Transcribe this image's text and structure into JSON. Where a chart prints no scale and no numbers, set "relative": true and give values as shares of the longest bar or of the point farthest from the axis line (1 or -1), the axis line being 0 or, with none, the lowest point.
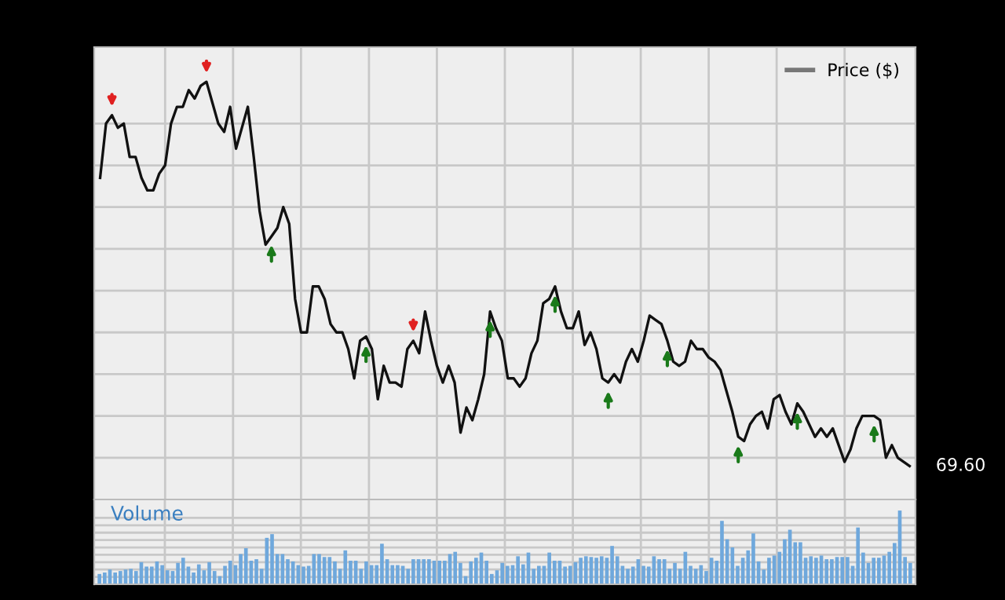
{
  "chart_data": [
    {
      "type": "line",
      "relative": true,
      "legend": "top right",
      "grid": true,
      "marker": "none",
      "line_style": "solid",
      "categories": [
        null,
        null,
        null,
        null,
        null,
        null,
        null,
        null,
        null,
        null,
        null,
        null,
        null,
        null,
        null,
        null,
        null,
        null,
        null,
        null,
        null,
        null,
        null,
        null,
        null,
        null,
        null,
        null,
        null,
        null,
        null,
        null,
        null,
        null,
        null,
        null,
        null,
        null,
        null,
        null,
        null,
        null,
        null,
        null,
        null,
        null,
        null,
        null,
        null,
        null,
        null,
        null,
        null,
        null,
        null,
        null,
        null,
        null,
        null,
        null,
        null,
        null,
        null,
        null,
        null,
        null,
        null,
        null,
        null,
        null,
        null,
        null,
        null,
        null,
        null,
        null,
        null,
        null,
        null,
        null,
        null,
        null,
        null,
        null,
        null,
        null,
        null,
        null,
        null,
        null,
        null,
        null,
        null,
        null,
        null,
        null,
        null,
        null,
        null,
        null,
        null,
        null,
        null,
        null,
        null,
        null,
        null,
        null,
        null,
        null,
        null,
        null,
        null,
        null,
        null,
        null,
        null,
        null,
        null,
        null,
        null,
        null,
        null,
        null,
        null,
        null,
        null,
        null,
        null,
        null,
        null,
        null,
        null,
        null,
        null,
        null,
        null,
        null
      ],
      "series": [
        {
          "name": "Price ($)",
          "color": "#111111",
          "values": [
            0.77,
            0.9,
            0.92,
            0.89,
            0.9,
            0.82,
            0.82,
            0.77,
            0.74,
            0.74,
            0.78,
            0.8,
            0.9,
            0.94,
            0.94,
            0.98,
            0.96,
            0.99,
            1.0,
            0.95,
            0.9,
            0.88,
            0.94,
            0.84,
            0.89,
            0.94,
            0.82,
            0.69,
            0.61,
            0.63,
            0.65,
            0.7,
            0.66,
            0.48,
            0.4,
            0.4,
            0.51,
            0.51,
            0.48,
            0.42,
            0.4,
            0.4,
            0.36,
            0.29,
            0.38,
            0.39,
            0.36,
            0.24,
            0.32,
            0.28,
            0.28,
            0.27,
            0.36,
            0.38,
            0.35,
            0.45,
            0.38,
            0.32,
            0.28,
            0.32,
            0.28,
            0.16,
            0.22,
            0.19,
            0.24,
            0.3,
            0.45,
            0.41,
            0.38,
            0.29,
            0.29,
            0.27,
            0.29,
            0.35,
            0.38,
            0.47,
            0.48,
            0.51,
            0.45,
            0.41,
            0.41,
            0.45,
            0.37,
            0.4,
            0.36,
            0.29,
            0.28,
            0.3,
            0.28,
            0.33,
            0.36,
            0.33,
            0.38,
            0.44,
            0.43,
            0.42,
            0.38,
            0.33,
            0.32,
            0.33,
            0.38,
            0.36,
            0.36,
            0.34,
            0.33,
            0.31,
            0.26,
            0.21,
            0.15,
            0.14,
            0.18,
            0.2,
            0.21,
            0.17,
            0.24,
            0.25,
            0.21,
            0.18,
            0.23,
            0.21,
            0.18,
            0.15,
            0.17,
            0.15,
            0.17,
            0.13,
            0.09,
            0.12,
            0.17,
            0.2,
            0.2,
            0.2,
            0.19,
            0.1,
            0.13,
            0.1,
            0.09,
            0.08
          ]
        }
      ],
      "annotations": [
        "69.60"
      ]
    },
    {
      "type": "bar",
      "relative": true,
      "title": "Volume",
      "grid": true,
      "categories": [
        null,
        null,
        null,
        null,
        null,
        null,
        null,
        null,
        null,
        null,
        null,
        null,
        null,
        null,
        null,
        null,
        null,
        null,
        null,
        null,
        null,
        null,
        null,
        null,
        null,
        null,
        null,
        null,
        null,
        null,
        null,
        null,
        null,
        null,
        null,
        null,
        null,
        null,
        null,
        null,
        null,
        null,
        null,
        null,
        null,
        null,
        null,
        null,
        null,
        null,
        null,
        null,
        null,
        null,
        null,
        null,
        null,
        null,
        null,
        null,
        null,
        null,
        null,
        null,
        null,
        null,
        null,
        null,
        null,
        null,
        null,
        null,
        null,
        null,
        null,
        null,
        null,
        null,
        null,
        null,
        null,
        null,
        null,
        null,
        null,
        null,
        null,
        null,
        null,
        null,
        null,
        null,
        null,
        null,
        null,
        null,
        null,
        null,
        null,
        null,
        null,
        null,
        null,
        null,
        null,
        null,
        null,
        null,
        null,
        null,
        null,
        null,
        null,
        null,
        null,
        null,
        null,
        null,
        null,
        null,
        null,
        null,
        null,
        null,
        null,
        null,
        null,
        null,
        null,
        null,
        null,
        null,
        null,
        null,
        null,
        null,
        null,
        null,
        null,
        null,
        null,
        null,
        null,
        null,
        null,
        null,
        null,
        null,
        null,
        null,
        null,
        null,
        null,
        null,
        null,
        null
      ],
      "color": "#6fa8dc",
      "values": [
        0.14,
        0.16,
        0.2,
        0.16,
        0.18,
        0.2,
        0.21,
        0.18,
        0.3,
        0.24,
        0.24,
        0.31,
        0.26,
        0.19,
        0.18,
        0.29,
        0.36,
        0.24,
        0.16,
        0.27,
        0.19,
        0.3,
        0.18,
        0.11,
        0.25,
        0.32,
        0.26,
        0.41,
        0.49,
        0.32,
        0.34,
        0.21,
        0.63,
        0.68,
        0.41,
        0.41,
        0.34,
        0.31,
        0.26,
        0.24,
        0.25,
        0.41,
        0.41,
        0.37,
        0.37,
        0.31,
        0.21,
        0.46,
        0.32,
        0.32,
        0.21,
        0.31,
        0.26,
        0.26,
        0.55,
        0.34,
        0.26,
        0.26,
        0.25,
        0.21,
        0.34,
        0.34,
        0.34,
        0.34,
        0.32,
        0.32,
        0.32,
        0.41,
        0.44,
        0.29,
        0.11,
        0.31,
        0.36,
        0.43,
        0.32,
        0.14,
        0.19,
        0.29,
        0.25,
        0.26,
        0.38,
        0.27,
        0.43,
        0.21,
        0.25,
        0.25,
        0.43,
        0.32,
        0.32,
        0.24,
        0.25,
        0.3,
        0.36,
        0.38,
        0.37,
        0.36,
        0.38,
        0.36,
        0.52,
        0.38,
        0.25,
        0.21,
        0.24,
        0.34,
        0.25,
        0.24,
        0.38,
        0.34,
        0.34,
        0.21,
        0.29,
        0.21,
        0.44,
        0.25,
        0.21,
        0.26,
        0.18,
        0.36,
        0.32,
        0.86,
        0.61,
        0.5,
        0.25,
        0.36,
        0.46,
        0.69,
        0.31,
        0.2,
        0.36,
        0.39,
        0.44,
        0.61,
        0.74,
        0.57,
        0.57,
        0.36,
        0.38,
        0.36,
        0.39,
        0.34,
        0.34,
        0.37,
        0.37,
        0.37,
        0.25,
        0.77,
        0.43,
        0.29,
        0.36,
        0.36,
        0.39,
        0.44,
        0.56,
        1.0,
        0.37,
        0.29
      ]
    }
  ]
}
